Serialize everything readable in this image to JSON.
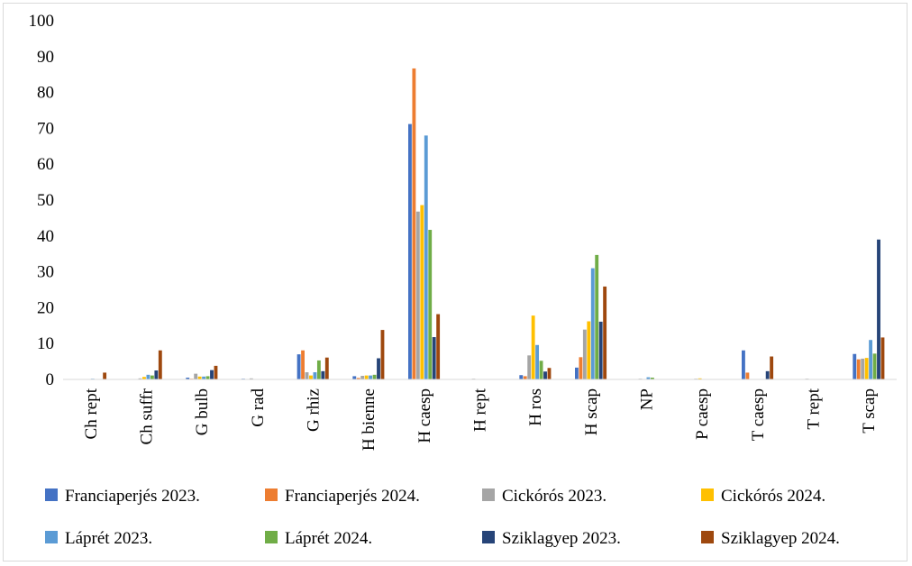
{
  "chart_data": {
    "type": "bar",
    "categories": [
      "Ch rept",
      "Ch suffr",
      "G bulb",
      "G rad",
      "G rhiz",
      "H bienne",
      "H caesp",
      "H rept",
      "H ros",
      "H scap",
      "NP",
      "P caesp",
      "T caesp",
      "T rept",
      "T scap"
    ],
    "ylim": [
      0,
      100
    ],
    "yticks": [
      0,
      10,
      20,
      30,
      40,
      50,
      60,
      70,
      80,
      90,
      100
    ],
    "grid": false,
    "legend_position": "bottom",
    "series": [
      {
        "name": "Franciaperjés 2023.",
        "color": "#4472c4",
        "values": [
          0,
          0.1,
          0.5,
          0.2,
          7,
          0.9,
          71.2,
          0,
          1.2,
          3.3,
          0,
          0,
          8.1,
          0,
          7.1
        ]
      },
      {
        "name": "Franciaperjés 2024.",
        "color": "#ed7d31",
        "values": [
          0,
          0.1,
          0.2,
          0,
          8.1,
          0.4,
          86.7,
          0,
          0.9,
          6.2,
          0,
          0,
          1.9,
          0,
          5.6
        ]
      },
      {
        "name": "Cickórós 2023.",
        "color": "#a5a5a5",
        "values": [
          0,
          0.3,
          1.6,
          0.3,
          2,
          1,
          46.8,
          0.2,
          6.7,
          13.9,
          0.2,
          0.2,
          0,
          0.2,
          5.8
        ]
      },
      {
        "name": "Cickórós 2024.",
        "color": "#ffc000",
        "values": [
          0,
          0.7,
          0.8,
          0,
          1.1,
          1.1,
          48.6,
          0,
          17.8,
          16.2,
          0,
          0.3,
          0,
          0,
          6
        ]
      },
      {
        "name": "Láprét 2023.",
        "color": "#5b9bd5",
        "values": [
          0.2,
          1.3,
          0.8,
          0,
          2,
          1.1,
          68,
          0.1,
          9.6,
          31,
          0.6,
          0,
          0,
          0.1,
          11
        ]
      },
      {
        "name": "Láprét 2024.",
        "color": "#70ad47",
        "values": [
          0,
          1.1,
          0.9,
          0,
          5.3,
          1.3,
          41.7,
          0,
          5.2,
          34.7,
          0.5,
          0,
          0,
          0,
          7.2
        ]
      },
      {
        "name": "Sziklagyep 2023.",
        "color": "#264478",
        "values": [
          0,
          2.5,
          2.6,
          0,
          2.3,
          5.9,
          11.8,
          0,
          2.2,
          16.1,
          0,
          0,
          2.3,
          0,
          39
        ]
      },
      {
        "name": "Sziklagyep 2024.",
        "color": "#9e480e",
        "values": [
          1.9,
          8.1,
          3.8,
          0,
          6.1,
          13.8,
          18.2,
          0,
          3.2,
          25.9,
          0,
          0,
          6.4,
          0,
          11.7
        ]
      }
    ]
  }
}
